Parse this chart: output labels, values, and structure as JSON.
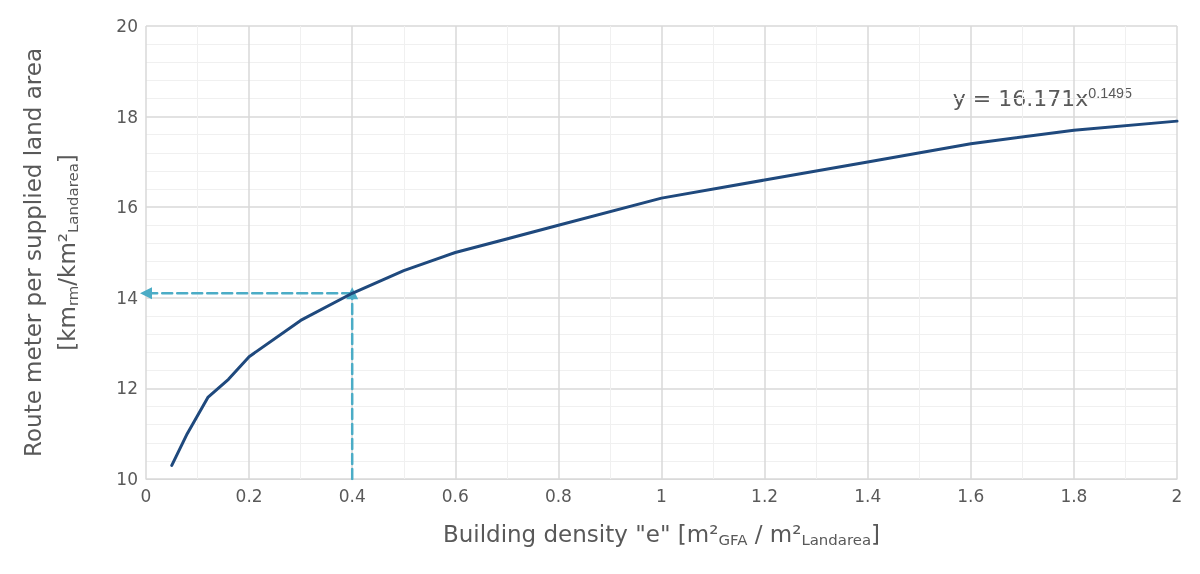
{
  "chart_data": {
    "type": "line",
    "xlabel": "Building density \"e\" [m²$_{GFA}$ / m²$_{Landarea}$]",
    "ylabel": "Route meter per supplied land area [km$_{rm}$/km²$_{Landarea}$]",
    "xlim": [
      0,
      2
    ],
    "xticks": [
      0,
      0.2,
      0.4,
      0.6,
      0.8,
      1,
      1.2,
      1.4,
      1.6,
      1.8,
      2
    ],
    "ylim": [
      10,
      20
    ],
    "yticks": [
      10,
      12,
      14,
      16,
      18,
      20
    ],
    "grid": true,
    "marker": "none",
    "line_style": "solid",
    "annotations": [
      "y = 16.171x$^{0.1495}$"
    ],
    "series": [
      {
        "color": "#1f497d",
        "x": [
          0.05,
          0.08,
          0.12,
          0.16,
          0.2,
          0.3,
          0.4,
          0.5,
          0.6,
          0.8,
          1.0,
          1.2,
          1.4,
          1.6,
          1.8,
          2.0
        ],
        "values": [
          10.3,
          11.0,
          11.8,
          12.2,
          12.7,
          13.5,
          14.1,
          14.6,
          15.0,
          15.6,
          16.2,
          16.6,
          17.0,
          17.4,
          17.7,
          17.9
        ]
      },
      {
        "color": "#4bacc6",
        "line_style": "dashed",
        "marker": "triangle",
        "x": [
          0.4,
          0.4
        ],
        "values": [
          10,
          14.1
        ]
      },
      {
        "color": "#4bacc6",
        "line_style": "dashed",
        "marker": "triangle",
        "x": [
          0.4,
          0
        ],
        "values": [
          14.1,
          14.1
        ]
      }
    ]
  }
}
